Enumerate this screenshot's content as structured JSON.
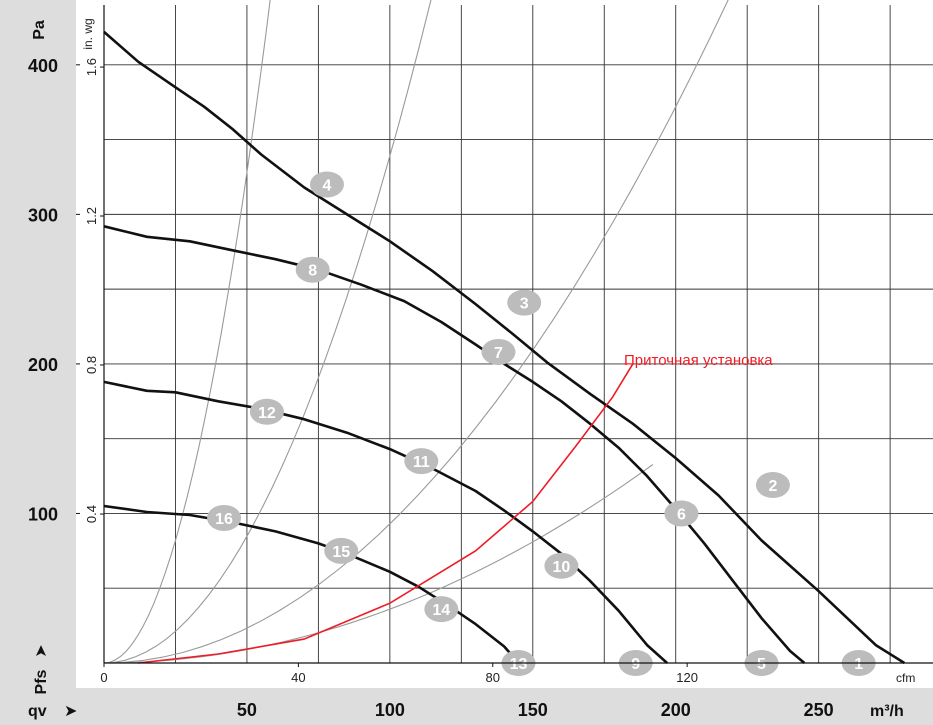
{
  "chart_data": {
    "type": "line",
    "title": "",
    "xlabel": "qv",
    "ylabel": "Pfs",
    "x_unit": "m³/h",
    "y_unit": "Pa",
    "x2_unit": "cfm",
    "y2_unit": "in. wg",
    "xlim": [
      0,
      290
    ],
    "ylim": [
      0,
      440
    ],
    "x_ticks": [
      50,
      100,
      150,
      200,
      250
    ],
    "y_ticks": [
      100,
      200,
      300,
      400
    ],
    "x2_ticks": [
      "0",
      "40",
      "80",
      "120"
    ],
    "x2_tick_values": [
      0,
      68,
      136,
      204
    ],
    "y2_ticks": [
      "0.4",
      "0.8",
      "1.2",
      "1.6"
    ],
    "y2_tick_values": [
      99.6,
      199.3,
      298.9,
      398.5
    ],
    "grid": true,
    "fan_curves": [
      {
        "x": [
          0,
          12,
          25,
          35,
          45,
          55,
          70,
          85,
          100,
          115,
          130,
          143,
          155,
          170,
          185,
          200,
          215,
          230,
          250,
          270,
          280
        ],
        "y": [
          422,
          402,
          385,
          372,
          357,
          340,
          318,
          300,
          282,
          262,
          240,
          220,
          201,
          180,
          160,
          137,
          112,
          82,
          48,
          12,
          0
        ]
      },
      {
        "x": [
          0,
          15,
          30,
          45,
          60,
          75,
          90,
          105,
          118,
          130,
          140,
          150,
          160,
          170,
          180,
          190,
          200,
          210,
          220,
          230,
          240,
          245
        ],
        "y": [
          292,
          285,
          282,
          276,
          270,
          263,
          253,
          242,
          228,
          213,
          200,
          188,
          175,
          160,
          144,
          125,
          103,
          80,
          55,
          30,
          8,
          0
        ]
      },
      {
        "x": [
          0,
          15,
          25,
          40,
          55,
          70,
          85,
          100,
          115,
          130,
          140,
          150,
          160,
          170,
          180,
          190,
          197
        ],
        "y": [
          188,
          182,
          181,
          175,
          170,
          163,
          154,
          143,
          130,
          115,
          102,
          88,
          73,
          55,
          35,
          12,
          0
        ]
      },
      {
        "x": [
          0,
          15,
          30,
          45,
          60,
          75,
          85,
          100,
          110,
          120,
          130,
          140,
          145
        ],
        "y": [
          105,
          101,
          99,
          94,
          88,
          80,
          73,
          61,
          51,
          39,
          26,
          11,
          0
        ]
      }
    ],
    "resistance_curves": [
      {
        "k": 0.1312,
        "x_end": 78
      },
      {
        "k": 0.0339,
        "x_end": 147
      },
      {
        "k": 0.0093,
        "x_end": 274
      },
      {
        "k": 0.0036,
        "x_end": 192
      }
    ],
    "operating_points": [
      {
        "label": "1",
        "x": 264,
        "y": 0
      },
      {
        "label": "2",
        "x": 234,
        "y": 119
      },
      {
        "label": "3",
        "x": 147,
        "y": 241
      },
      {
        "label": "4",
        "x": 78,
        "y": 320
      },
      {
        "label": "5",
        "x": 230,
        "y": 0
      },
      {
        "label": "6",
        "x": 202,
        "y": 100
      },
      {
        "label": "7",
        "x": 138,
        "y": 208
      },
      {
        "label": "8",
        "x": 73,
        "y": 263
      },
      {
        "label": "9",
        "x": 186,
        "y": 0
      },
      {
        "label": "10",
        "x": 160,
        "y": 65
      },
      {
        "label": "11",
        "x": 111,
        "y": 135
      },
      {
        "label": "12",
        "x": 57,
        "y": 168
      },
      {
        "label": "13",
        "x": 145,
        "y": 0
      },
      {
        "label": "14",
        "x": 118,
        "y": 36
      },
      {
        "label": "15",
        "x": 83,
        "y": 75
      },
      {
        "label": "16",
        "x": 42,
        "y": 97
      }
    ],
    "supply_unit": {
      "name": "Приточная установка",
      "x": [
        12,
        40,
        70,
        100,
        130,
        150,
        165,
        178,
        185
      ],
      "y": [
        0,
        6,
        16,
        40,
        75,
        108,
        145,
        178,
        200
      ]
    },
    "colors": {
      "fan_curve": "#111111",
      "resistance_curve": "#9a9a9a",
      "supply_unit": "#ee1c25",
      "point_fill": "#bcbcbc",
      "axis_band": "#dddddd"
    }
  }
}
